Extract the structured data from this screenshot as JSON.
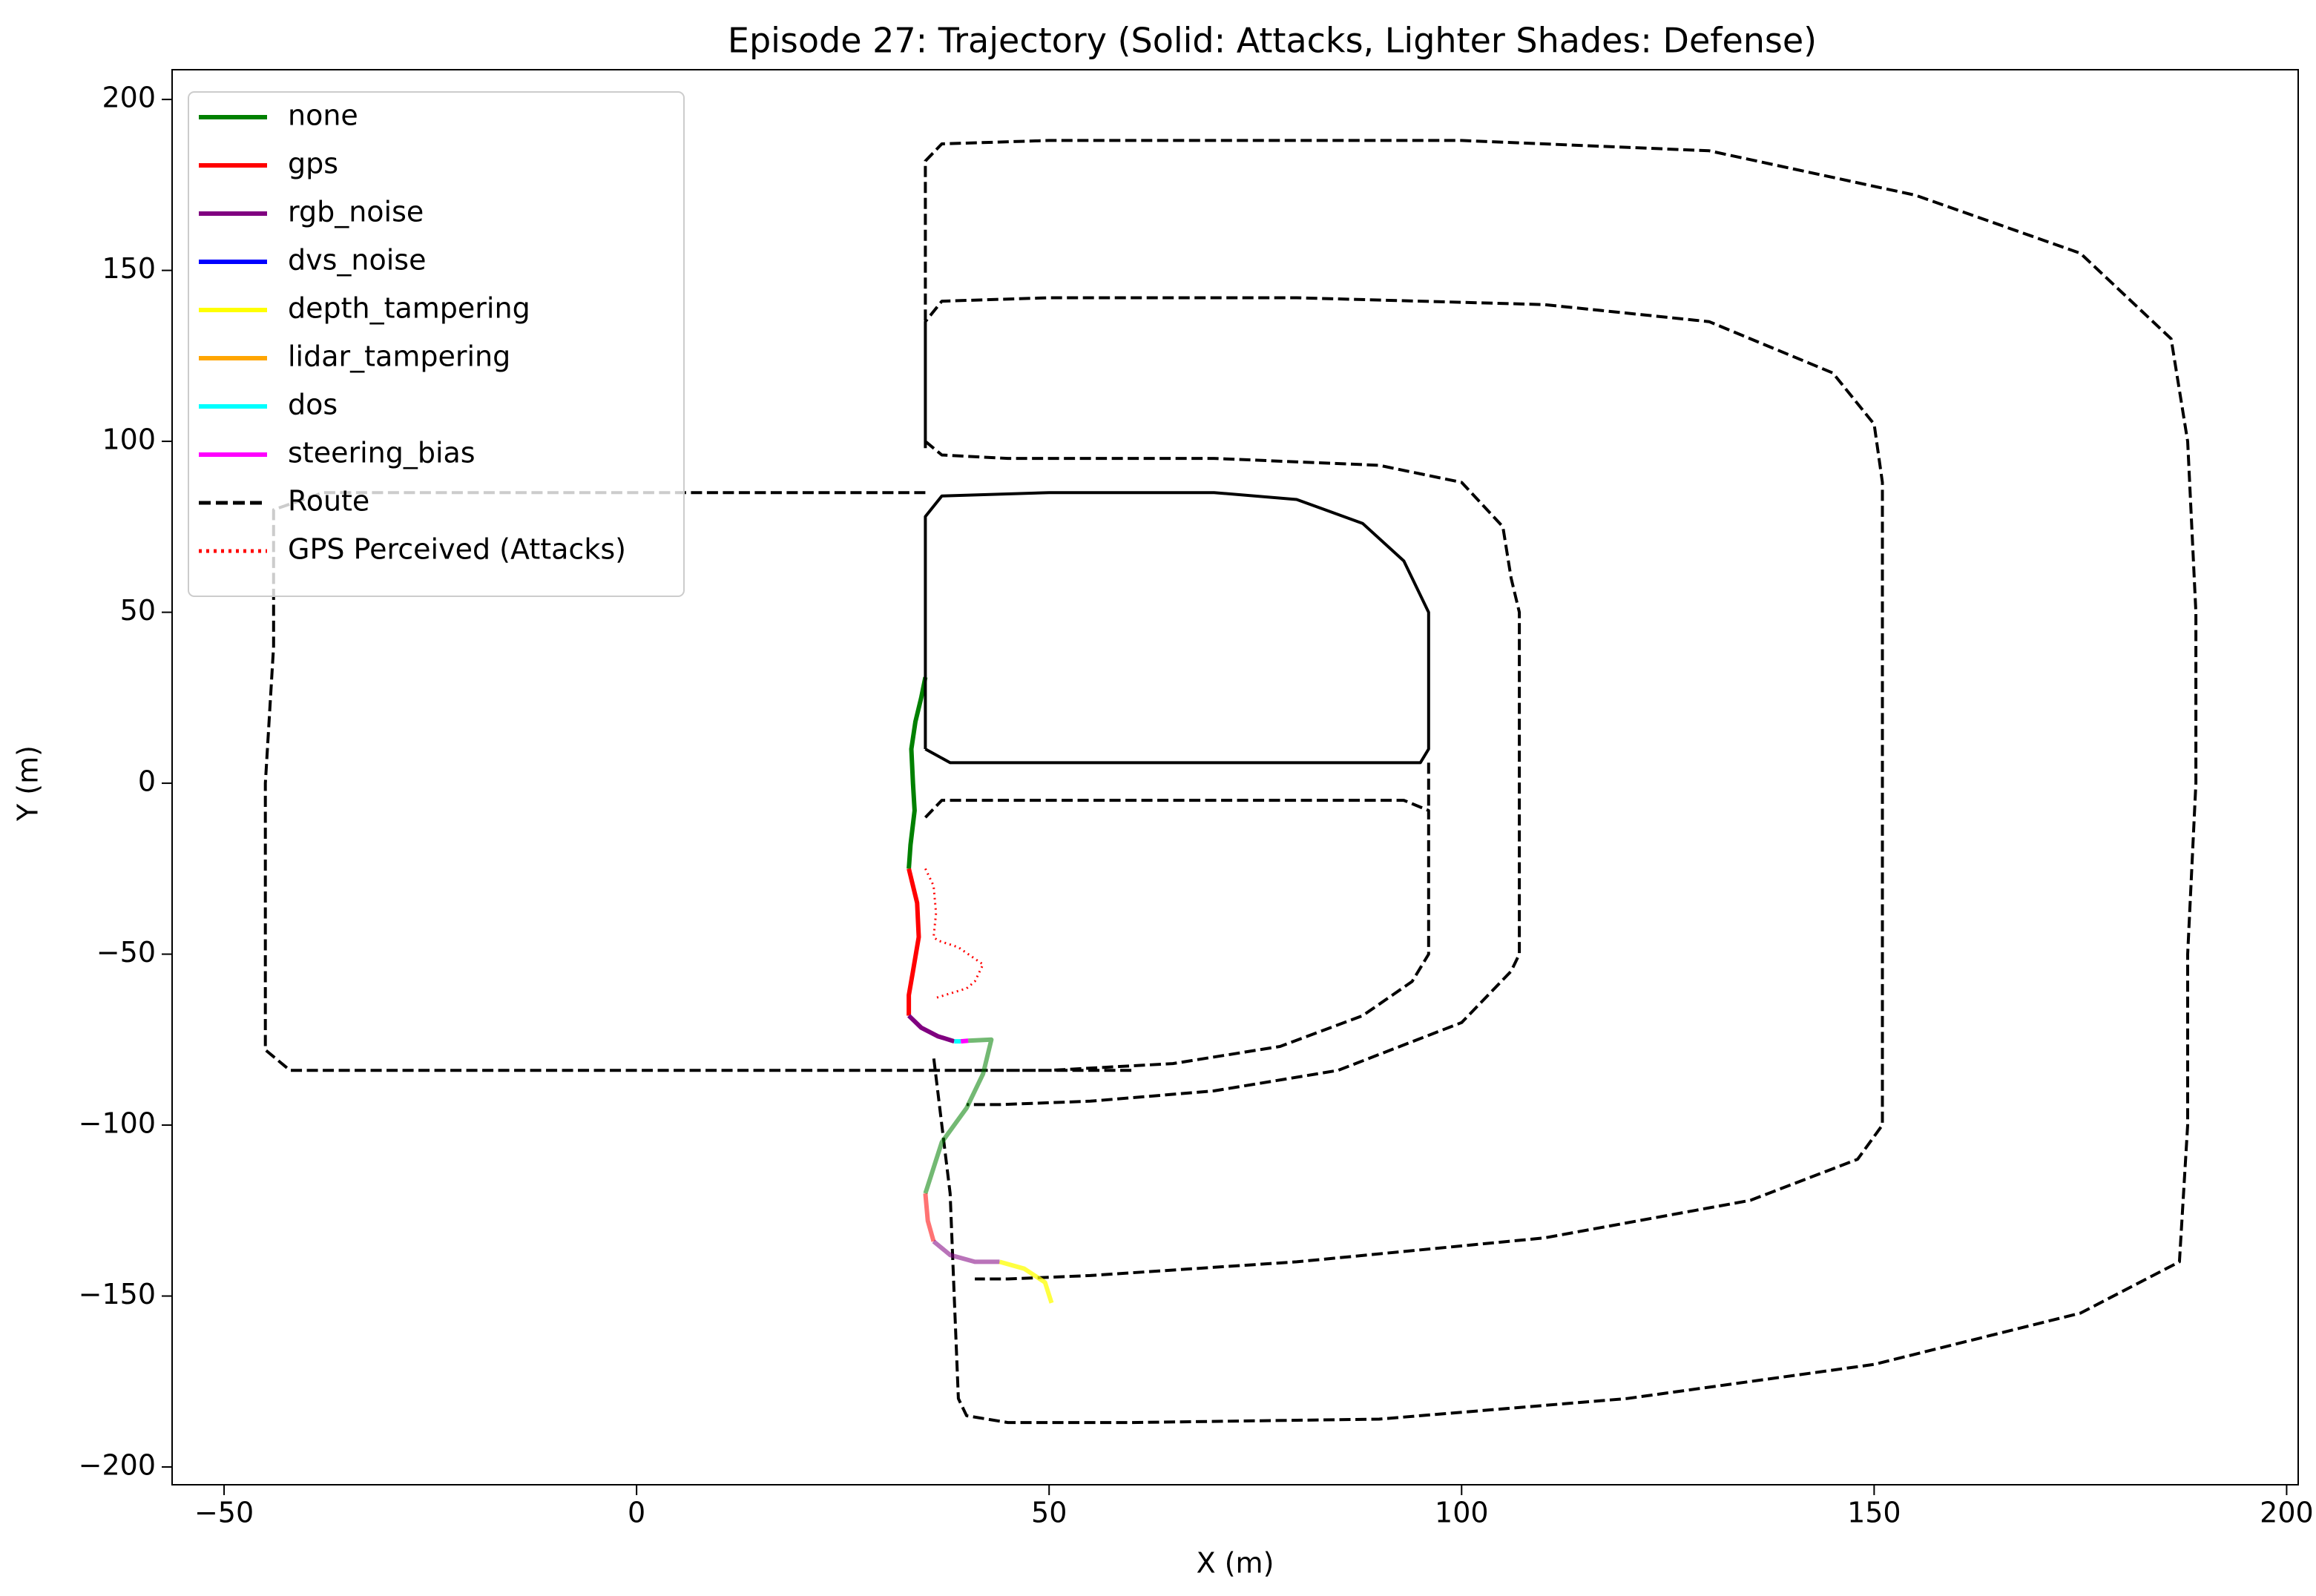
{
  "chart_data": {
    "type": "line",
    "title": "Episode 27: Trajectory (Solid: Attacks, Lighter Shades: Defense)",
    "xlabel": "X (m)",
    "ylabel": "Y (m)",
    "xlim": [
      -56.3,
      201.4
    ],
    "ylim": [
      -205.2,
      208.7
    ],
    "xticks": [
      {
        "value": -50,
        "label": "−50"
      },
      0,
      50,
      100,
      150,
      200
    ],
    "yticks": [
      {
        "value": -200,
        "label": "−200"
      },
      {
        "value": -150,
        "label": "−150"
      },
      {
        "value": -100,
        "label": "−100"
      },
      {
        "value": -50,
        "label": "−50"
      },
      0,
      50,
      100,
      150,
      200
    ],
    "legend": "upper left",
    "series": [
      {
        "name": "none",
        "color": "#008000",
        "style": "solid",
        "x": [
          35,
          34.5,
          33.8,
          33.3,
          33.5,
          33.7,
          33.2,
          33
        ],
        "values": [
          31,
          25,
          18,
          10,
          0,
          -8,
          -18,
          -25
        ]
      },
      {
        "name": "gps",
        "color": "#ff0000",
        "style": "solid",
        "x": [
          33,
          34,
          34.2,
          33.5,
          33,
          33
        ],
        "values": [
          -25,
          -35,
          -45,
          -55,
          -62,
          -68
        ]
      },
      {
        "name": "rgb_noise",
        "color": "#800080",
        "style": "solid",
        "x": [
          33,
          34.5,
          36.5,
          38.5
        ],
        "values": [
          -68,
          -71.5,
          -74,
          -75.5
        ]
      },
      {
        "name": "dvs_noise",
        "color": "#0000ff",
        "style": "solid",
        "x": [],
        "values": []
      },
      {
        "name": "depth_tampering",
        "color": "#ffff00",
        "style": "solid",
        "x": [],
        "values": []
      },
      {
        "name": "lidar_tampering",
        "color": "#ffa500",
        "style": "solid",
        "x": [],
        "values": []
      },
      {
        "name": "dos",
        "color": "#00ffff",
        "style": "solid",
        "x": [
          38.5,
          39.3
        ],
        "values": [
          -75.5,
          -75.5
        ]
      },
      {
        "name": "steering_bias",
        "color": "#ff00ff",
        "style": "solid",
        "x": [
          39.3,
          40.2
        ],
        "values": [
          -75.5,
          -75.3
        ]
      },
      {
        "name": "Route",
        "color": "#000000",
        "style": "dashed",
        "x": [
          35,
          35,
          37,
          50,
          100,
          130,
          155,
          175,
          186,
          188,
          189,
          189,
          188,
          188,
          187,
          175,
          150,
          120,
          90,
          60,
          45,
          40,
          39,
          38.5,
          38,
          37,
          36,
          null,
          35,
          35,
          37,
          50,
          80,
          110,
          130,
          145,
          150,
          151,
          151,
          151,
          151,
          151,
          148,
          135,
          110,
          80,
          55,
          45,
          41,
          null,
          35,
          37,
          45,
          70,
          90,
          100,
          105,
          106,
          107,
          107,
          107,
          106,
          100,
          85,
          70,
          55,
          44,
          40,
          null,
          35,
          0,
          -38,
          -44,
          -44,
          -45,
          -45,
          -45,
          -42,
          0,
          40,
          60,
          null,
          35,
          37,
          50,
          80,
          93,
          96,
          96,
          96,
          94,
          88,
          78,
          65,
          50,
          38,
          null,
          96,
          96
        ],
        "values": [
          98,
          182,
          187,
          188,
          188,
          185,
          172,
          155,
          130,
          100,
          50,
          0,
          -50,
          -100,
          -140,
          -155,
          -170,
          -180,
          -186,
          -187,
          -187,
          -185,
          -180,
          -150,
          -120,
          -100,
          -80,
          null,
          100,
          135,
          141,
          142,
          142,
          140,
          135,
          120,
          105,
          88,
          50,
          0,
          -50,
          -100,
          -110,
          -122,
          -133,
          -140,
          -144,
          -145,
          -145,
          null,
          100,
          96,
          95,
          95,
          93,
          88,
          75,
          60,
          50,
          0,
          -50,
          -55,
          -70,
          -84,
          -90,
          -93,
          -94,
          -94,
          null,
          85,
          85,
          85,
          80,
          40,
          0,
          -40,
          -78,
          -84,
          -84,
          -84,
          -84,
          null,
          -10,
          -5,
          -5,
          -5,
          -5,
          -8,
          -30,
          -50,
          -58,
          -68,
          -77,
          -82,
          -84,
          -84,
          null,
          6,
          -8
        ]
      },
      {
        "name": "GPS Perceived (Attacks)",
        "color": "#ff0000",
        "style": "dotted",
        "x": [
          35,
          36,
          36.3,
          36,
          36.5,
          39,
          42,
          41,
          40,
          36
        ],
        "values": [
          -25,
          -30,
          -38,
          -45,
          -46,
          -48,
          -53,
          -58,
          -60,
          -63
        ]
      },
      {
        "color": "#000000",
        "style": "solid",
        "x": [
          35,
          35,
          37,
          50,
          70,
          80,
          88,
          93,
          96,
          96,
          96,
          95,
          80,
          50,
          38,
          35
        ],
        "values": [
          10,
          78,
          84,
          85,
          85,
          83,
          76,
          65,
          50,
          30,
          10,
          6,
          6,
          6,
          6,
          10
        ]
      },
      {
        "color": "#008000",
        "style": "solid",
        "alpha": 0.55,
        "x": [
          40.2,
          43,
          42,
          40,
          37,
          35
        ],
        "values": [
          -75.3,
          -75,
          -85,
          -95,
          -105,
          -120
        ]
      },
      {
        "color": "#ff0000",
        "style": "solid",
        "alpha": 0.55,
        "x": [
          35,
          35.3,
          36
        ],
        "values": [
          -120,
          -128,
          -134
        ]
      },
      {
        "color": "#800080",
        "style": "solid",
        "alpha": 0.55,
        "x": [
          36,
          38,
          41,
          44
        ],
        "values": [
          -134,
          -138,
          -140,
          -140
        ]
      },
      {
        "color": "#ffff00",
        "style": "solid",
        "alpha": 0.75,
        "x": [
          44,
          47,
          49.5,
          50.3
        ],
        "values": [
          -140,
          -142,
          -146,
          -152
        ]
      }
    ]
  }
}
